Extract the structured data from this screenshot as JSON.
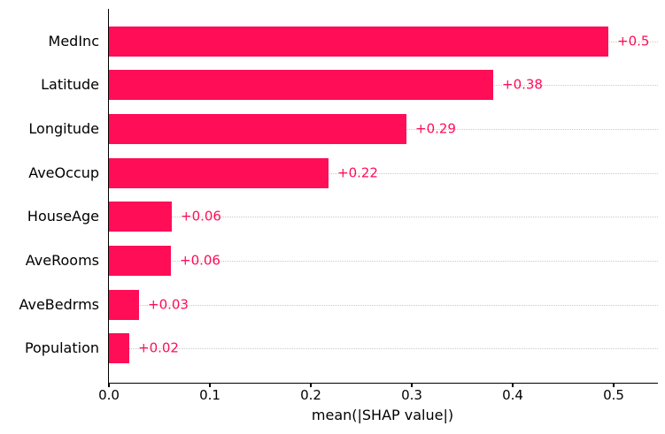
{
  "chart_data": {
    "type": "bar",
    "orientation": "horizontal",
    "title": "",
    "xlabel": "mean(|SHAP value|)",
    "ylabel": "",
    "categories": [
      "MedInc",
      "Latitude",
      "Longitude",
      "AveOccup",
      "HouseAge",
      "AveRooms",
      "AveBedrms",
      "Population"
    ],
    "values": [
      0.495,
      0.381,
      0.295,
      0.218,
      0.062,
      0.061,
      0.03,
      0.02
    ],
    "bar_labels": [
      "+0.5",
      "+0.38",
      "+0.29",
      "+0.22",
      "+0.06",
      "+0.06",
      "+0.03",
      "+0.02"
    ],
    "x_ticks": [
      {
        "value": 0.0,
        "label": "0.0"
      },
      {
        "value": 0.1,
        "label": "0.1"
      },
      {
        "value": 0.2,
        "label": "0.2"
      },
      {
        "value": 0.3,
        "label": "0.3"
      },
      {
        "value": 0.4,
        "label": "0.4"
      },
      {
        "value": 0.5,
        "label": "0.5"
      }
    ],
    "xlim": [
      0,
      0.544
    ],
    "grid": "horizontal-dotted",
    "legend": "none",
    "colors": {
      "bar": "#ff0d57",
      "bar_label": "#ff0d57",
      "grid": "#c9c9c9",
      "axis": "#000000",
      "text": "#000000",
      "background": "#ffffff"
    }
  }
}
